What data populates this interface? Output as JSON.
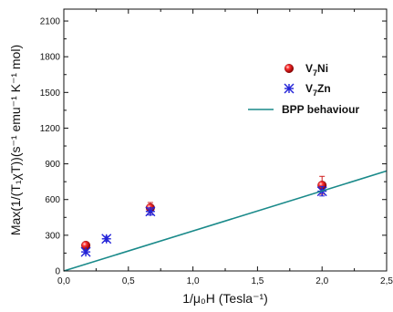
{
  "chart_data": {
    "type": "scatter",
    "xlabel": "1/μ₀H (Tesla⁻¹)",
    "ylabel": "Max(1/(T₁χT))(s⁻¹ emu⁻¹ K⁻¹ mol)",
    "xlim": [
      0,
      2.5
    ],
    "ylim": [
      0,
      2200
    ],
    "x_ticks": [
      "0,0",
      "0,5",
      "1,0",
      "1,5",
      "2,0",
      "2,5"
    ],
    "y_ticks": [
      "0",
      "300",
      "600",
      "900",
      "1200",
      "1500",
      "1800",
      "2100"
    ],
    "grid": false,
    "legend_position": "top-right",
    "series": [
      {
        "name": "V7Ni",
        "marker": "sphere",
        "color": "#e01010",
        "points": [
          {
            "x": 0.17,
            "y": 215,
            "err": 15
          },
          {
            "x": 0.67,
            "y": 530,
            "err": 45
          },
          {
            "x": 2.0,
            "y": 720,
            "err": 75
          }
        ]
      },
      {
        "name": "V7Zn",
        "marker": "asterisk",
        "color": "#2323d8",
        "points": [
          {
            "x": 0.17,
            "y": 160,
            "err": 15
          },
          {
            "x": 0.33,
            "y": 270,
            "err": 20
          },
          {
            "x": 0.67,
            "y": 500,
            "err": 30
          },
          {
            "x": 2.0,
            "y": 670,
            "err": 40
          }
        ]
      },
      {
        "name": "BPP behaviour",
        "type": "line",
        "color": "#1a8a8a",
        "x": [
          0,
          2.5
        ],
        "y": [
          0,
          840
        ]
      }
    ],
    "legend": [
      {
        "base": "V",
        "sub": "7",
        "rest": "Ni"
      },
      {
        "base": "V",
        "sub": "7",
        "rest": "Zn"
      },
      {
        "base": "BPP behaviour",
        "sub": "",
        "rest": ""
      }
    ]
  }
}
